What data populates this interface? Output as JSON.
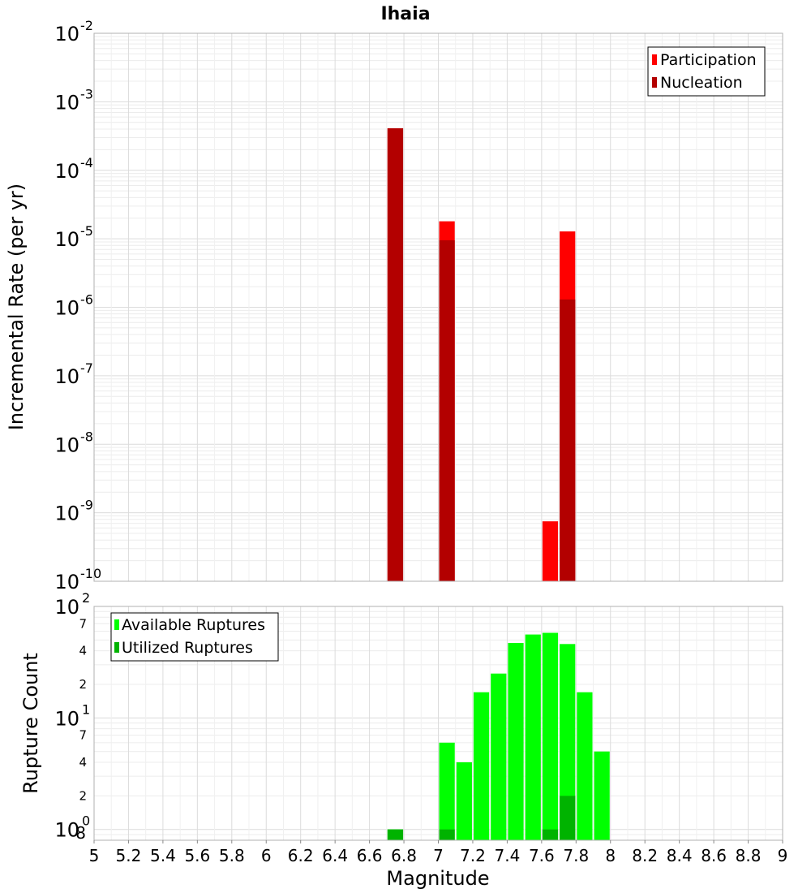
{
  "chart_data": [
    {
      "type": "bar",
      "title": "Ihaia",
      "ylabel": "Incremental Rate (per yr)",
      "xlabel": "",
      "xlim": [
        5,
        9
      ],
      "ylim": [
        1e-10,
        0.01
      ],
      "yscale": "log",
      "grid": true,
      "legend_position": "top-right",
      "y_tick_labels": [
        {
          "base": "10",
          "exp": "-10",
          "value": 1e-10
        },
        {
          "base": "10",
          "exp": "-9",
          "value": 1e-09
        },
        {
          "base": "10",
          "exp": "-8",
          "value": 1e-08
        },
        {
          "base": "10",
          "exp": "-7",
          "value": 1e-07
        },
        {
          "base": "10",
          "exp": "-6",
          "value": 1e-06
        },
        {
          "base": "10",
          "exp": "-5",
          "value": 1e-05
        },
        {
          "base": "10",
          "exp": "-4",
          "value": 0.0001
        },
        {
          "base": "10",
          "exp": "-3",
          "value": 0.001
        },
        {
          "base": "10",
          "exp": "-2",
          "value": 0.01
        }
      ],
      "series": [
        {
          "name": "Participation",
          "color": "#ff0000",
          "points": [
            {
              "x": 6.75,
              "y": 0.00041
            },
            {
              "x": 7.05,
              "y": 1.8e-05
            },
            {
              "x": 7.65,
              "y": 7.5e-10
            },
            {
              "x": 7.75,
              "y": 1.28e-05
            }
          ]
        },
        {
          "name": "Nucleation",
          "color": "#b30000",
          "points": [
            {
              "x": 6.75,
              "y": 0.00041
            },
            {
              "x": 7.05,
              "y": 9.5e-06
            },
            {
              "x": 7.75,
              "y": 1.3e-06
            }
          ]
        }
      ]
    },
    {
      "type": "bar",
      "title": "",
      "ylabel": "Rupture Count",
      "xlabel": "Magnitude",
      "xlim": [
        5,
        9
      ],
      "ylim": [
        0.8,
        100
      ],
      "yscale": "log",
      "grid": true,
      "legend_position": "top-left",
      "x_tick_labels": [
        "5",
        "5.2",
        "5.4",
        "5.6",
        "5.8",
        "6",
        "6.2",
        "6.4",
        "6.6",
        "6.8",
        "7",
        "7.2",
        "7.4",
        "7.6",
        "7.8",
        "8",
        "8.2",
        "8.4",
        "8.6",
        "8.8",
        "9"
      ],
      "y_major_labels": [
        {
          "base": "10",
          "exp": "0",
          "value": 1
        },
        {
          "base": "10",
          "exp": "1",
          "value": 10
        },
        {
          "base": "10",
          "exp": "2",
          "value": 100
        }
      ],
      "y_minor_labels": [
        {
          "label": "8",
          "value": 0.8
        },
        {
          "label": "2",
          "value": 2
        },
        {
          "label": "4",
          "value": 4
        },
        {
          "label": "7",
          "value": 7
        },
        {
          "label": "2",
          "value": 20
        },
        {
          "label": "4",
          "value": 40
        },
        {
          "label": "7",
          "value": 70
        }
      ],
      "series": [
        {
          "name": "Available Ruptures",
          "color": "#00ff00",
          "points": [
            {
              "x": 6.75,
              "y": 1
            },
            {
              "x": 7.05,
              "y": 6
            },
            {
              "x": 7.15,
              "y": 4
            },
            {
              "x": 7.25,
              "y": 17
            },
            {
              "x": 7.35,
              "y": 25
            },
            {
              "x": 7.45,
              "y": 47
            },
            {
              "x": 7.55,
              "y": 56
            },
            {
              "x": 7.65,
              "y": 58
            },
            {
              "x": 7.75,
              "y": 46
            },
            {
              "x": 7.85,
              "y": 17
            },
            {
              "x": 7.95,
              "y": 5
            }
          ]
        },
        {
          "name": "Utilized Ruptures",
          "color": "#00b300",
          "points": [
            {
              "x": 6.75,
              "y": 1
            },
            {
              "x": 7.05,
              "y": 1
            },
            {
              "x": 7.65,
              "y": 1
            },
            {
              "x": 7.75,
              "y": 2
            }
          ]
        }
      ]
    }
  ]
}
